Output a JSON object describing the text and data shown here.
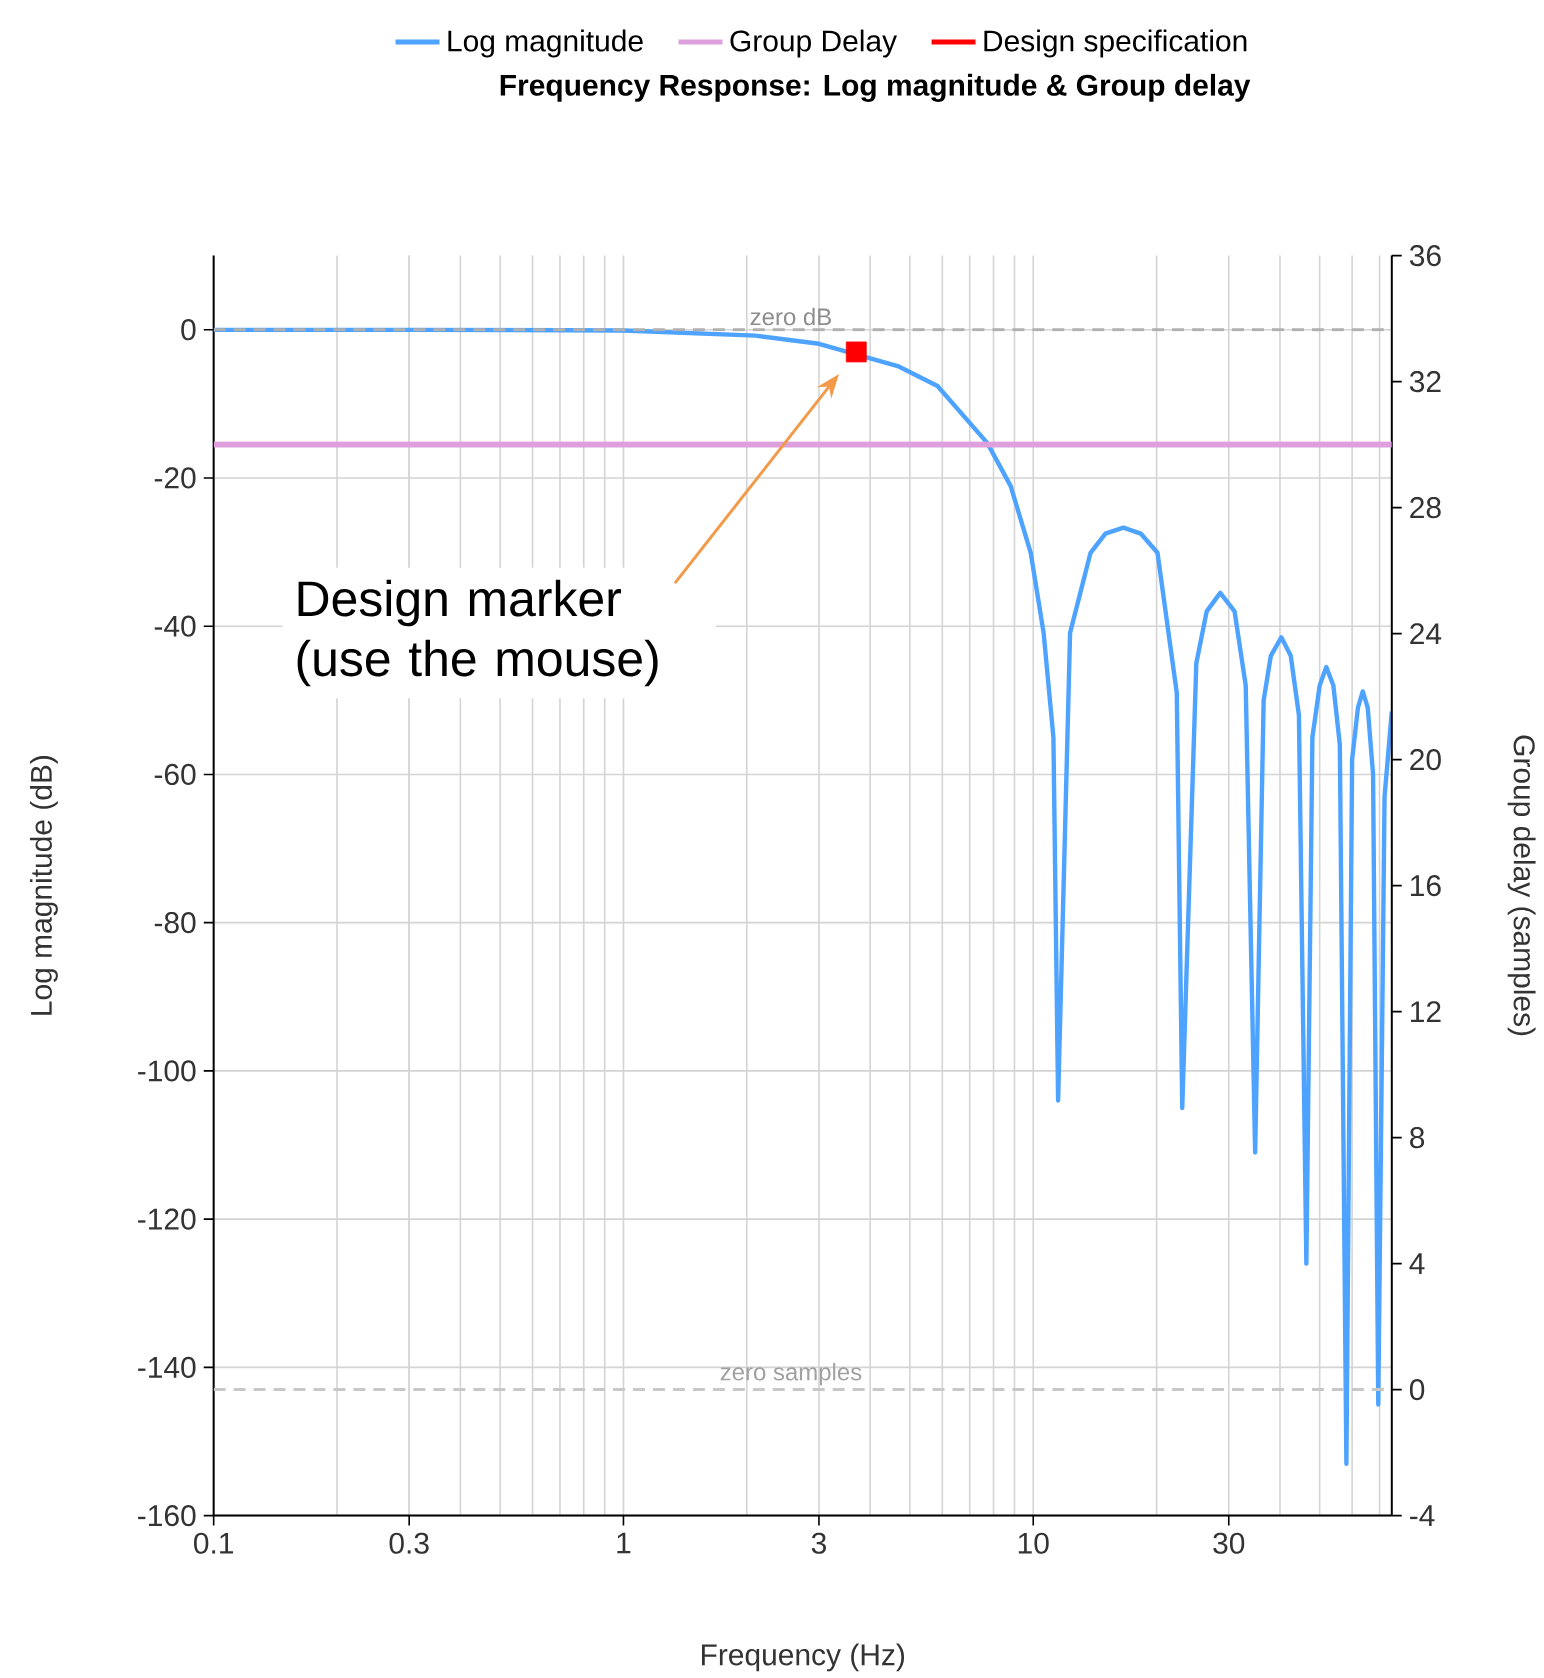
{
  "chart_data": {
    "type": "line",
    "title": "Frequency Response: Log magnitude & Group delay",
    "xlabel": "Frequency (Hz)",
    "ylabel": "Log magnitude (dB)",
    "y2label": "Group delay (samples)",
    "log": "x",
    "xlim": [
      0.1,
      75
    ],
    "xticks": [
      0.1,
      0.3,
      1,
      3,
      10,
      30
    ],
    "ylim": [
      -160,
      10
    ],
    "yticks": [
      -160,
      -140,
      -120,
      -100,
      -80,
      -60,
      -40,
      -20,
      0
    ],
    "y2lim": [
      -4,
      36
    ],
    "y2ticks": [
      -4,
      0,
      4,
      8,
      12,
      16,
      20,
      24,
      28,
      32,
      36
    ],
    "grid": true,
    "legend": "top",
    "series": [
      {
        "name": "Log magnitude",
        "color": "#4da3ff",
        "x": [
          0.1,
          0.3,
          1,
          2.1,
          3,
          3.7,
          4.67,
          5.84,
          7.73,
          8.81,
          9.86,
          10.6,
          11.2,
          11.5,
          12.3,
          13.8,
          15,
          16.6,
          18.3,
          20.1,
          22.4,
          23.1,
          25,
          26.5,
          28.6,
          31,
          33,
          34.8,
          36.5,
          38,
          40.3,
          42.5,
          44.5,
          46.4,
          48,
          50,
          51.9,
          54,
          56,
          58.1,
          60,
          62,
          63.7,
          65.5,
          67.5,
          69.5,
          72,
          75
        ],
        "values": [
          0,
          0,
          -0.1,
          -0.8,
          -1.9,
          null,
          -4.9,
          -7.6,
          -15.3,
          -21.1,
          -30.1,
          -40.9,
          -55,
          -104,
          -40.9,
          -30.1,
          -27.5,
          -26.7,
          -27.5,
          -30.1,
          -49,
          -105,
          -45,
          -38,
          -35.5,
          -38,
          -48,
          -111,
          -50,
          -44,
          -41.5,
          -44,
          -52,
          -126,
          -55,
          -48,
          -45.5,
          -48,
          -56,
          -153,
          -58,
          -51,
          -48.8,
          -51,
          -60,
          -145,
          -63,
          -51.5
        ]
      },
      {
        "name": "Group Delay",
        "color": "#dda0dd",
        "axis": "y2",
        "x": [
          0.1,
          75
        ],
        "values": [
          30,
          30
        ]
      },
      {
        "name": "Design specification",
        "color": "#ff0000",
        "type": "scatter",
        "marker": "square",
        "x": [
          3.7
        ],
        "values": [
          -3
        ]
      }
    ],
    "ref_lines": [
      {
        "axis": "y",
        "value": 0,
        "label": "zero dB",
        "color": "#b0b0b0",
        "line_style": "dashed"
      },
      {
        "axis": "y2",
        "value": 0,
        "label": "zero samples",
        "color": "#c8c8c8",
        "line_style": "dashed"
      }
    ],
    "annotations": [
      "Design marker (use the mouse)"
    ]
  }
}
